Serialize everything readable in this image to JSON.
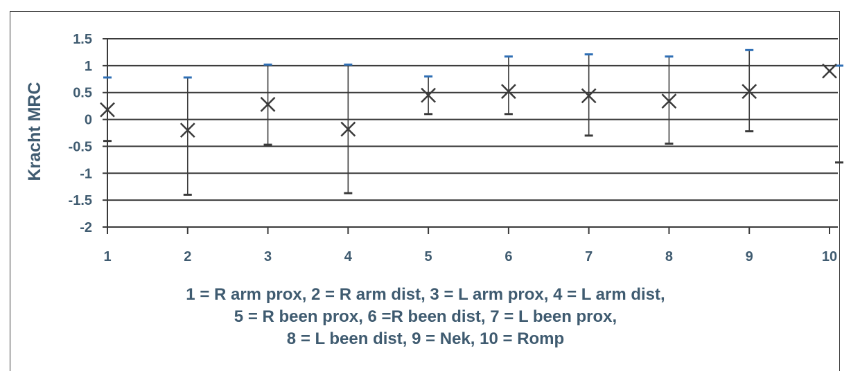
{
  "chart_data": {
    "type": "scatter",
    "ylabel": "Kracht MRC",
    "xlabel": "",
    "ylim": [
      -2,
      1.5
    ],
    "yticks": [
      1.5,
      1,
      0.5,
      0,
      -0.5,
      -1,
      -1.5,
      -2
    ],
    "ytick_labels": [
      "1.5",
      "1",
      "0.5",
      "0",
      "-0.5",
      "-1",
      "-1.5",
      "-2"
    ],
    "categories": [
      "1",
      "2",
      "3",
      "4",
      "5",
      "6",
      "7",
      "8",
      "9",
      "10"
    ],
    "series": [
      {
        "values": [
          0.18,
          -0.2,
          0.28,
          -0.18,
          0.45,
          0.52,
          0.44,
          0.34,
          0.52,
          0.9
        ],
        "lower": [
          -0.4,
          -1.4,
          -0.47,
          -1.37,
          0.1,
          0.1,
          -0.3,
          -0.45,
          -0.22,
          -0.8
        ],
        "upper": [
          0.78,
          0.78,
          1.02,
          1.02,
          0.8,
          1.17,
          1.21,
          1.17,
          1.29,
          1.0
        ]
      }
    ],
    "grid": true,
    "marker": "x",
    "colors": {
      "ink": "#3a3a3a",
      "text": "#3f5b70",
      "cap_upper": "#2f6fb5"
    }
  },
  "caption": {
    "lines": [
      "1 = R arm prox, 2 = R arm dist, 3 = L arm prox, 4 = L arm dist,",
      "5 = R been prox, 6 =R been dist, 7 = L been prox,",
      "8 = L been dist, 9 = Nek, 10 = Romp"
    ]
  }
}
